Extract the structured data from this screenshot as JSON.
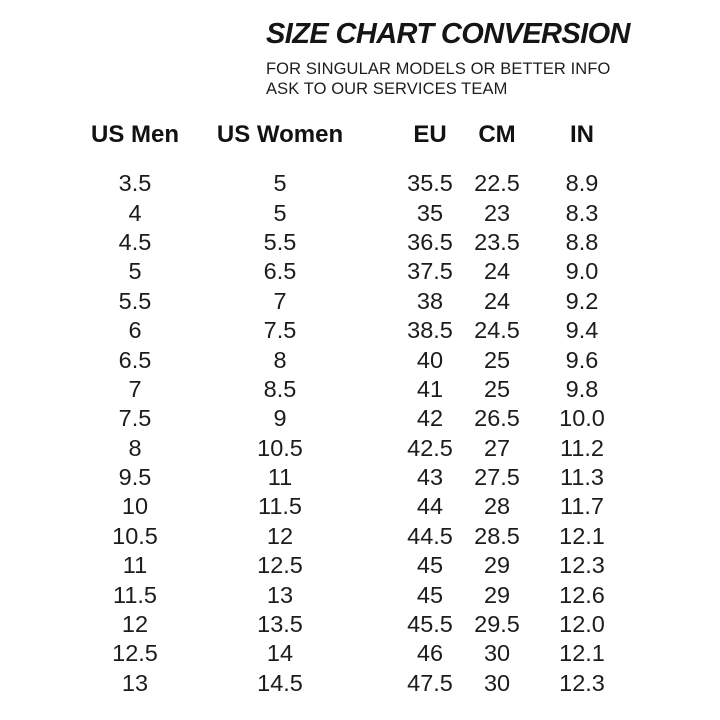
{
  "header": {
    "title": "SIZE CHART CONVERSION",
    "subtitle_line1": "FOR SINGULAR MODELS OR BETTER INFO",
    "subtitle_line2": "ASK TO OUR SERVICES TEAM"
  },
  "table": {
    "columns": [
      "US Men",
      "US Women",
      "EU",
      "CM",
      "IN"
    ],
    "rows": [
      {
        "us_men": "3.5",
        "us_women": "5",
        "eu": "35.5",
        "cm": "22.5",
        "in": "8.9"
      },
      {
        "us_men": "4",
        "us_women": "5",
        "eu": "35",
        "cm": "23",
        "in": "8.3"
      },
      {
        "us_men": "4.5",
        "us_women": "5.5",
        "eu": "36.5",
        "cm": "23.5",
        "in": "8.8"
      },
      {
        "us_men": "5",
        "us_women": "6.5",
        "eu": "37.5",
        "cm": "24",
        "in": "9.0"
      },
      {
        "us_men": "5.5",
        "us_women": "7",
        "eu": "38",
        "cm": "24",
        "in": "9.2"
      },
      {
        "us_men": "6",
        "us_women": "7.5",
        "eu": "38.5",
        "cm": "24.5",
        "in": "9.4"
      },
      {
        "us_men": "6.5",
        "us_women": "8",
        "eu": "40",
        "cm": "25",
        "in": "9.6"
      },
      {
        "us_men": "7",
        "us_women": "8.5",
        "eu": "41",
        "cm": "25",
        "in": "9.8"
      },
      {
        "us_men": "7.5",
        "us_women": "9",
        "eu": "42",
        "cm": "26.5",
        "in": "10.0"
      },
      {
        "us_men": "8",
        "us_women": "10.5",
        "eu": "42.5",
        "cm": "27",
        "in": "11.2"
      },
      {
        "us_men": "9.5",
        "us_women": "11",
        "eu": "43",
        "cm": "27.5",
        "in": "11.3"
      },
      {
        "us_men": "10",
        "us_women": "11.5",
        "eu": "44",
        "cm": "28",
        "in": "11.7"
      },
      {
        "us_men": "10.5",
        "us_women": "12",
        "eu": "44.5",
        "cm": "28.5",
        "in": "12.1"
      },
      {
        "us_men": "11",
        "us_women": "12.5",
        "eu": "45",
        "cm": "29",
        "in": "12.3"
      },
      {
        "us_men": "11.5",
        "us_women": "13",
        "eu": "45",
        "cm": "29",
        "in": "12.6"
      },
      {
        "us_men": "12",
        "us_women": "13.5",
        "eu": "45.5",
        "cm": "29.5",
        "in": "12.0"
      },
      {
        "us_men": "12.5",
        "us_women": "14",
        "eu": "46",
        "cm": "30",
        "in": "12.1"
      },
      {
        "us_men": "13",
        "us_women": "14.5",
        "eu": "47.5",
        "cm": "30",
        "in": "12.3"
      }
    ]
  },
  "colors": {
    "text": "#161616",
    "background": "#ffffff"
  }
}
